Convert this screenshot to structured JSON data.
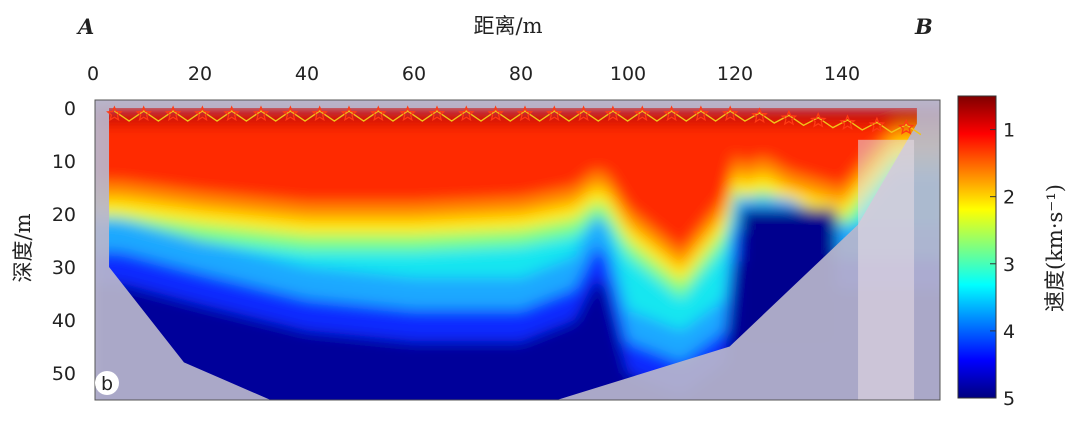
{
  "chart_data": {
    "type": "heatmap",
    "panel_label": "b",
    "corner_labels": {
      "left": "A",
      "right": "B"
    },
    "xlabel": "距离/m",
    "ylabel": "深度/m",
    "xlim": [
      0,
      160
    ],
    "ylim": [
      0,
      55
    ],
    "x_ticks": [
      "0",
      "20",
      "40",
      "60",
      "80",
      "100",
      "120",
      "140"
    ],
    "y_ticks": [
      "0",
      "10",
      "20",
      "30",
      "40",
      "50"
    ],
    "colorbar": {
      "label": "速度(km·s⁻¹)",
      "range": [
        0.5,
        5
      ],
      "ticks": [
        "1",
        "2",
        "3",
        "4",
        "5"
      ],
      "colormap": "jet (reversed: red = low velocity, dark blue = high velocity)"
    },
    "section_outline": {
      "x": [
        3,
        17,
        33,
        87,
        119,
        143,
        154
      ],
      "bottom_depth": [
        30,
        48,
        55,
        55,
        45,
        22,
        3
      ]
    },
    "velocity_layers": [
      {
        "x": [
          5,
          20,
          40,
          60,
          80,
          90,
          95,
          100,
          110,
          118,
          120,
          122,
          125,
          130,
          140,
          150
        ],
        "depth_top_km_s_2": [
          17,
          19,
          21,
          21,
          20,
          18,
          14,
          22,
          30,
          20,
          12,
          14,
          12,
          15,
          18,
          6
        ]
      },
      {
        "x": [
          5,
          20,
          40,
          60,
          80,
          90,
          95,
          100,
          110,
          118,
          120,
          130,
          140
        ],
        "depth_top_km_s_4": [
          23,
          27,
          32,
          34,
          34,
          30,
          20,
          40,
          44,
          38,
          19,
          19,
          24
        ]
      }
    ],
    "high_velocity_block": {
      "x_range": [
        121,
        139
      ],
      "depth_range": [
        19,
        45
      ],
      "velocity_km_s": 5
    },
    "surface_markers": {
      "description": "stars = shot points, triangles = geophones",
      "x_start": 4,
      "x_end": 152,
      "count": 28
    },
    "colors": {
      "marker": "#ff3b14",
      "wave": "#f0c419",
      "mask": "#b9b6cc"
    }
  }
}
